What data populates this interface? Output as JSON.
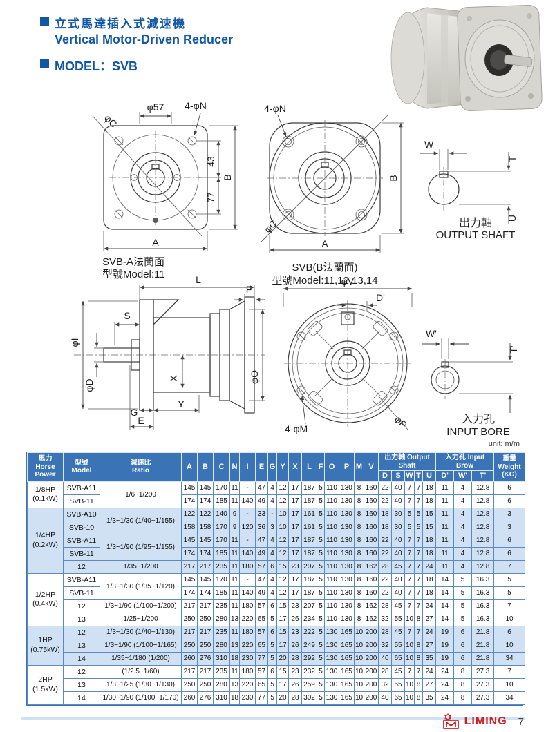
{
  "page": {
    "title_zh": "立式馬達插入式減速機",
    "title_en": "Vertical Motor-Driven Reducer",
    "model_line": "MODEL：SVB",
    "unit_note": "unit: m/m",
    "brand": "LIMING",
    "page_number": "7"
  },
  "drawings": {
    "flange_a": {
      "caption1": "SVB-A法蘭面",
      "caption2": "型號Model:11",
      "dims": {
        "c": "φC",
        "d57": "φ57",
        "n": "4-φN",
        "d43": "43",
        "d77": "77",
        "b": "B",
        "a": "A"
      }
    },
    "flange_b": {
      "caption1": "SVB(B法蘭面)",
      "caption2": "型號Model:11,12,13,14",
      "dims": {
        "n": "4-φN",
        "c": "φC",
        "b": "B",
        "a": "A"
      }
    },
    "output_shaft": {
      "caption_zh": "出力軸",
      "caption_en": "OUTPUT SHAFT",
      "dims": {
        "w": "W",
        "t": "T",
        "u": "U"
      }
    },
    "side_view": {
      "dims": {
        "l": "L",
        "f": "F",
        "s": "S",
        "i": "φI",
        "d": "φD",
        "x": "X",
        "o": "φO",
        "g": "G",
        "e": "E",
        "y": "Y"
      }
    },
    "input_bore_front": {
      "dims": {
        "v": "φV",
        "dp": "D'",
        "m": "4-φM",
        "p": "φP"
      }
    },
    "input_bore_detail": {
      "caption_zh": "入力孔",
      "caption_en": "INPUT BORE",
      "dims": {
        "wp": "W'",
        "tp": "T'"
      }
    }
  },
  "table": {
    "headers": {
      "power": "馬力\nHorse\nPower",
      "model": "型號\nModel",
      "ratio": "減速比\nRatio",
      "output_shaft": "出力軸 Output Shaft",
      "input_bore": "入力孔 Input Brow",
      "weight": "重量\nWeight\n(KG)"
    },
    "columns": [
      "A",
      "B",
      "C",
      "N",
      "I",
      "E",
      "G",
      "Y",
      "X",
      "L",
      "F",
      "O",
      "P",
      "M",
      "V"
    ],
    "output_shaft_cols": [
      "D",
      "S",
      "W",
      "T",
      "U"
    ],
    "input_bore_cols": [
      "D'",
      "W'",
      "T'"
    ],
    "groups": [
      {
        "power": "1/8HP\n(0.1kW)",
        "shaded": false,
        "rows": [
          {
            "model": "SVB-A11",
            "ratio": "1/6~1/200",
            "ratio_span": 2,
            "values": [
              145,
              145,
              170,
              11,
              "-",
              47,
              4,
              12,
              17,
              187,
              5,
              110,
              130,
              8,
              160,
              22,
              40,
              7,
              7,
              18,
              11,
              4,
              12.8,
              6
            ]
          },
          {
            "model": "SVB-11",
            "ratio": null,
            "values": [
              174,
              174,
              185,
              11,
              140,
              49,
              4,
              12,
              17,
              187,
              5,
              110,
              130,
              8,
              160,
              22,
              40,
              7,
              7,
              18,
              11,
              4,
              12.8,
              6
            ]
          }
        ]
      },
      {
        "power": "1/4HP\n(0.2kW)",
        "shaded": true,
        "rows": [
          {
            "model": "SVB-A10",
            "ratio": "1/3~1/30 (1/40~1/155)",
            "ratio_span": 2,
            "values": [
              122,
              122,
              140,
              9,
              "-",
              33,
              "-",
              10,
              17,
              161,
              5,
              110,
              130,
              8,
              160,
              18,
              30,
              5,
              5,
              15,
              11,
              4,
              12.8,
              3
            ]
          },
          {
            "model": "SVB-10",
            "ratio": null,
            "values": [
              158,
              158,
              170,
              9,
              120,
              36,
              3,
              10,
              17,
              161,
              5,
              110,
              130,
              8,
              160,
              18,
              30,
              5,
              5,
              15,
              11,
              4,
              12.8,
              3
            ]
          },
          {
            "model": "SVB-A11",
            "ratio": "1/3~1/90 (1/95~1/155)",
            "ratio_span": 2,
            "values": [
              145,
              145,
              170,
              11,
              "-",
              47,
              4,
              12,
              17,
              187,
              5,
              110,
              130,
              8,
              160,
              22,
              40,
              7,
              7,
              18,
              11,
              4,
              12.8,
              6
            ]
          },
          {
            "model": "SVB-11",
            "ratio": null,
            "values": [
              174,
              174,
              185,
              11,
              140,
              49,
              4,
              12,
              17,
              187,
              5,
              110,
              130,
              8,
              160,
              22,
              40,
              7,
              7,
              18,
              11,
              4,
              12.8,
              6
            ]
          },
          {
            "model": "12",
            "ratio": "1/35~1/200",
            "values": [
              217,
              217,
              235,
              11,
              180,
              57,
              6,
              15,
              23,
              207,
              5,
              110,
              130,
              8,
              162,
              28,
              45,
              7,
              7,
              24,
              11,
              4,
              12.8,
              7
            ]
          }
        ]
      },
      {
        "power": "1/2HP\n(0.4kW)",
        "shaded": false,
        "rows": [
          {
            "model": "SVB-A11",
            "ratio": "1/3~1/30 (1/35~1/120)",
            "ratio_span": 2,
            "values": [
              145,
              145,
              170,
              11,
              "-",
              47,
              4,
              12,
              17,
              187,
              5,
              110,
              130,
              8,
              160,
              22,
              40,
              7,
              7,
              18,
              14,
              5,
              16.3,
              5
            ]
          },
          {
            "model": "SVB-11",
            "ratio": null,
            "values": [
              174,
              174,
              185,
              11,
              140,
              49,
              4,
              12,
              17,
              187,
              5,
              110,
              130,
              8,
              160,
              22,
              40,
              7,
              7,
              18,
              14,
              5,
              16.3,
              5
            ]
          },
          {
            "model": "12",
            "ratio": "1/3~1/90 (1/100~1/200)",
            "values": [
              217,
              217,
              235,
              11,
              180,
              57,
              6,
              15,
              23,
              207,
              5,
              110,
              130,
              8,
              162,
              28,
              45,
              7,
              7,
              24,
              14,
              5,
              16.3,
              7
            ]
          },
          {
            "model": "13",
            "ratio": "1/25~1/200",
            "values": [
              250,
              250,
              280,
              13,
              220,
              65,
              5,
              17,
              26,
              234,
              5,
              110,
              130,
              8,
              162,
              32,
              55,
              10,
              8,
              27,
              14,
              5,
              16.3,
              10
            ]
          }
        ]
      },
      {
        "power": "1HP\n(0.75kW)",
        "shaded": true,
        "rows": [
          {
            "model": "12",
            "ratio": "1/3~1/30 (1/40~1/130)",
            "values": [
              217,
              217,
              235,
              11,
              180,
              57,
              6,
              15,
              23,
              222,
              5,
              130,
              165,
              10,
              200,
              28,
              45,
              7,
              7,
              24,
              19,
              6,
              21.8,
              6
            ]
          },
          {
            "model": "13",
            "ratio": "1/3~1/90 (1/100~1/165)",
            "values": [
              250,
              250,
              280,
              13,
              220,
              65,
              5,
              17,
              26,
              249,
              5,
              130,
              165,
              10,
              200,
              32,
              55,
              10,
              8,
              27,
              19,
              6,
              21.8,
              10
            ]
          },
          {
            "model": "14",
            "ratio": "1/35~1/180 (1/200)",
            "values": [
              260,
              276,
              310,
              18,
              230,
              77,
              5,
              20,
              28,
              292,
              5,
              130,
              165,
              10,
              200,
              40,
              65,
              10,
              8,
              35,
              19,
              6,
              21.8,
              34
            ]
          }
        ]
      },
      {
        "power": "2HP\n(1.5kW)",
        "shaded": false,
        "rows": [
          {
            "model": "12",
            "ratio": "(1/2.5~1/60)",
            "values": [
              217,
              217,
              235,
              11,
              180,
              57,
              6,
              15,
              23,
              232,
              5,
              130,
              165,
              10,
              200,
              28,
              45,
              7,
              7,
              24,
              24,
              8,
              27.3,
              7
            ]
          },
          {
            "model": "13",
            "ratio": "1/3~1/25 (1/30~1/130)",
            "values": [
              250,
              250,
              280,
              13,
              220,
              65,
              5,
              17,
              26,
              259,
              5,
              130,
              165,
              10,
              200,
              32,
              55,
              10,
              8,
              27,
              24,
              8,
              27.3,
              10
            ]
          },
          {
            "model": "14",
            "ratio": "1/30~1/90 (1/100~1/170)",
            "values": [
              260,
              276,
              310,
              18,
              230,
              77,
              5,
              20,
              28,
              302,
              5,
              130,
              165,
              10,
              200,
              40,
              65,
              10,
              8,
              35,
              24,
              8,
              27.3,
              34
            ]
          }
        ]
      }
    ]
  }
}
